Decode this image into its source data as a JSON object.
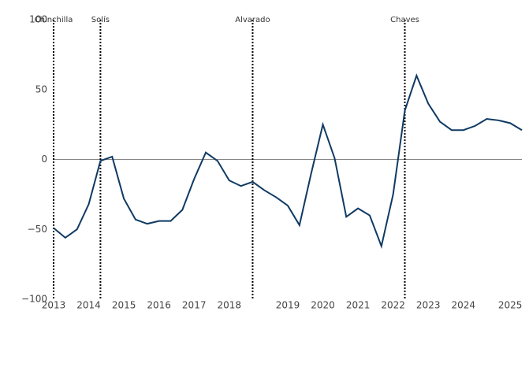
{
  "chart_data": {
    "type": "line",
    "categories": [
      "2013",
      null,
      null,
      "2014",
      null,
      null,
      "2015",
      null,
      null,
      "2016",
      null,
      null,
      "2017",
      null,
      null,
      "2018",
      null,
      null,
      null,
      null,
      "2019",
      null,
      null,
      "2020",
      null,
      null,
      "2021",
      null,
      null,
      "2022",
      null,
      null,
      "2023",
      null,
      null,
      "2024",
      null,
      null,
      null,
      "2025",
      null
    ],
    "series": [
      {
        "color": "#0f3a63",
        "values": [
          -49,
          -56,
          -50,
          -32,
          -1,
          2,
          -28,
          -43,
          -46,
          -44,
          -44,
          -36,
          -14,
          5,
          -1,
          -15,
          -19,
          -16,
          -22,
          -27,
          -33,
          -47,
          -10,
          25,
          1,
          -41,
          -35,
          -40,
          -62,
          -25,
          35,
          60,
          40,
          27,
          21,
          21,
          24,
          29,
          28,
          26,
          21
        ]
      }
    ],
    "ylim": [
      -100,
      100
    ],
    "yticks": [
      {
        "value": -100,
        "label": "−100"
      },
      {
        "value": -50,
        "label": "−50"
      },
      0,
      50,
      100
    ],
    "zero_line": true,
    "annotations": [
      {
        "label": "Chinchilla",
        "at": 0
      },
      {
        "label": "Solís",
        "at": 4
      },
      {
        "label": "Alvarado",
        "at": 17
      },
      {
        "label": "Chaves",
        "at": 30
      }
    ]
  }
}
